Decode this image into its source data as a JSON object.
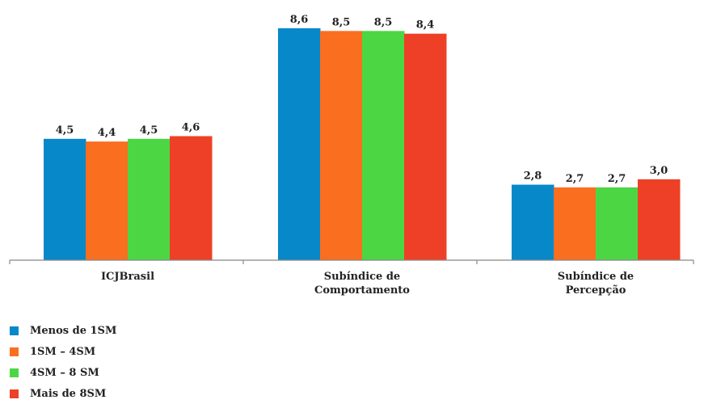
{
  "chart_data": {
    "type": "bar",
    "categories": [
      "ICJBrasil",
      "Subíndice de\nComportamento",
      "Subíndice de\nPercepção"
    ],
    "series": [
      {
        "name": "Menos de 1SM",
        "color": "#0788c9",
        "values": [
          4.5,
          8.6,
          2.8
        ],
        "labels": [
          "4,5",
          "8,6",
          "2,8"
        ]
      },
      {
        "name": "1SM – 4SM",
        "color": "#fa6e20",
        "values": [
          4.4,
          8.5,
          2.7
        ],
        "labels": [
          "4,4",
          "8,5",
          "2,7"
        ]
      },
      {
        "name": "4SM – 8 SM",
        "color": "#4cd644",
        "values": [
          4.5,
          8.5,
          2.7
        ],
        "labels": [
          "4,5",
          "8,5",
          "2,7"
        ]
      },
      {
        "name": "Mais de 8SM",
        "color": "#ee4026",
        "values": [
          4.6,
          8.4,
          3.0
        ],
        "labels": [
          "4,6",
          "8,4",
          "3,0"
        ]
      }
    ],
    "ylim": [
      0,
      8.6
    ],
    "grid": false,
    "legend_position": "bottom-left"
  }
}
